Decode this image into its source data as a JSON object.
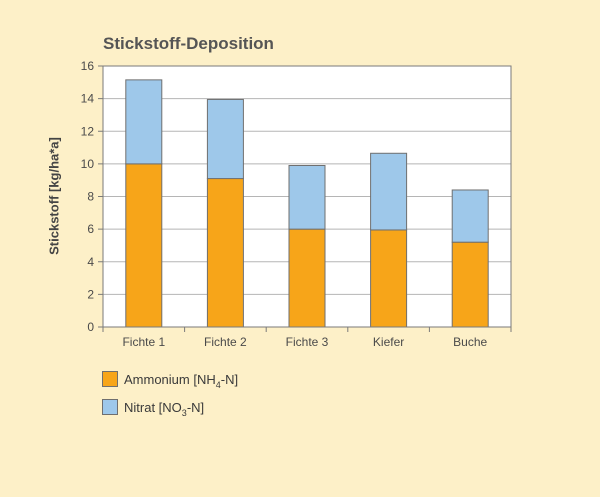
{
  "chart_data": {
    "type": "bar",
    "stacked": true,
    "title": "Stickstoff-Deposition",
    "xlabel": "",
    "ylabel": "Stickstoff [kg/ha*a]",
    "ylim": [
      0,
      16
    ],
    "yticks": [
      0,
      2,
      4,
      6,
      8,
      10,
      12,
      14,
      16
    ],
    "grid": true,
    "legend_position": "bottom-left",
    "categories": [
      "Fichte 1",
      "Fichte 2",
      "Fichte 3",
      "Kiefer",
      "Buche"
    ],
    "series": [
      {
        "name": "Ammonium [NH4-N]",
        "name_main": "Ammonium [NH",
        "name_sub": "4",
        "name_tail": "-N]",
        "color": "#F7A519",
        "values": [
          10.0,
          9.1,
          6.0,
          5.95,
          5.2
        ]
      },
      {
        "name": "Nitrat [NO3-N]",
        "name_main": "Nitrat [NO",
        "name_sub": "3",
        "name_tail": "-N]",
        "color": "#9EC8EA",
        "values": [
          5.15,
          4.85,
          3.9,
          4.7,
          3.2
        ]
      }
    ]
  }
}
